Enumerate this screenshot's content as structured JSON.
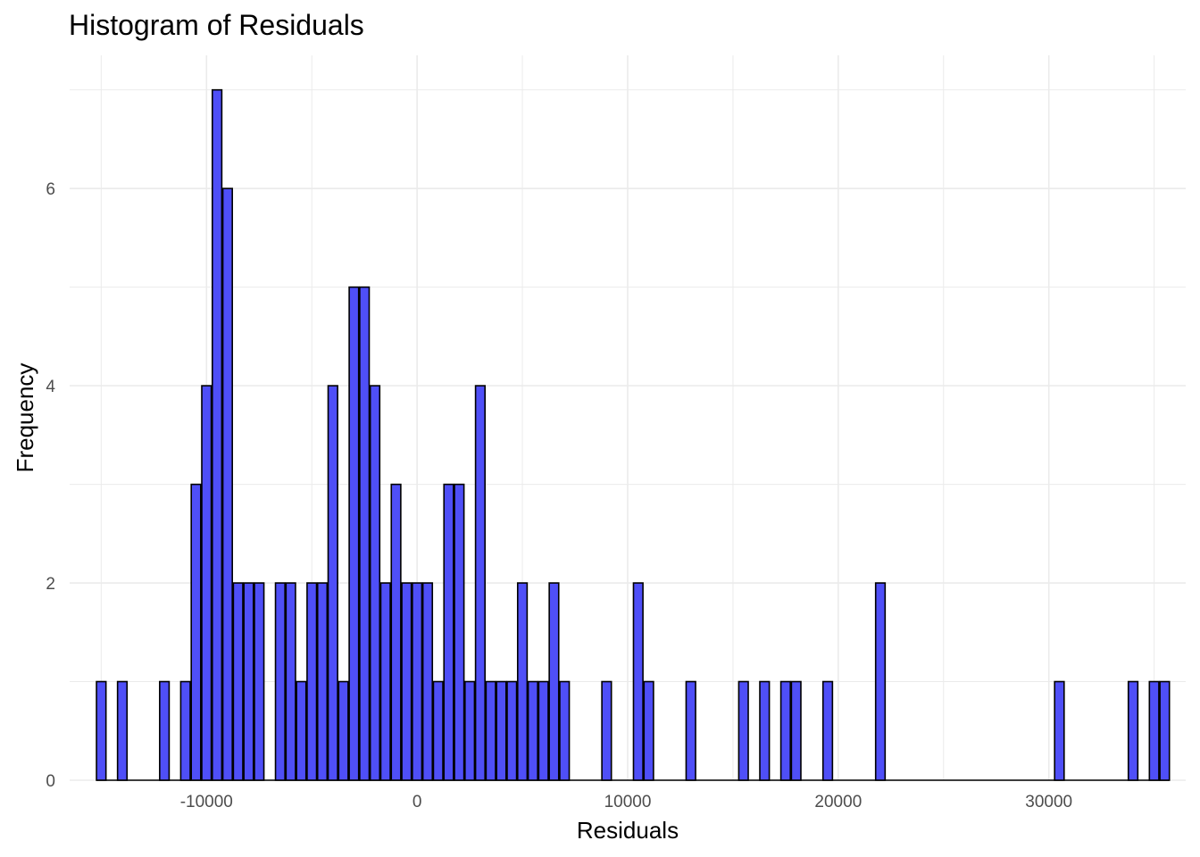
{
  "chart_data": {
    "type": "bar",
    "subtype": "histogram",
    "title": "Histogram of Residuals",
    "xlabel": "Residuals",
    "ylabel": "Frequency",
    "bin_width": 450,
    "xlim": [
      -16500,
      36500
    ],
    "ylim": [
      0,
      7.35
    ],
    "x_ticks": [
      -10000,
      0,
      10000,
      20000,
      30000
    ],
    "x_tick_labels": [
      "-10000",
      "0",
      "10000",
      "20000",
      "30000"
    ],
    "y_ticks": [
      0,
      2,
      4,
      6
    ],
    "y_tick_labels": [
      "0",
      "2",
      "4",
      "6"
    ],
    "grid": true,
    "bins": [
      {
        "x": -15000,
        "count": 1
      },
      {
        "x": -14000,
        "count": 1
      },
      {
        "x": -12000,
        "count": 1
      },
      {
        "x": -11000,
        "count": 1
      },
      {
        "x": -10500,
        "count": 3
      },
      {
        "x": -10000,
        "count": 4
      },
      {
        "x": -9500,
        "count": 7
      },
      {
        "x": -9000,
        "count": 6
      },
      {
        "x": -8500,
        "count": 2
      },
      {
        "x": -8000,
        "count": 2
      },
      {
        "x": -7500,
        "count": 2
      },
      {
        "x": -6500,
        "count": 2
      },
      {
        "x": -6000,
        "count": 2
      },
      {
        "x": -5500,
        "count": 1
      },
      {
        "x": -5000,
        "count": 2
      },
      {
        "x": -4500,
        "count": 2
      },
      {
        "x": -4000,
        "count": 4
      },
      {
        "x": -3500,
        "count": 1
      },
      {
        "x": -3000,
        "count": 5
      },
      {
        "x": -2500,
        "count": 5
      },
      {
        "x": -2000,
        "count": 4
      },
      {
        "x": -1500,
        "count": 2
      },
      {
        "x": -1000,
        "count": 3
      },
      {
        "x": -500,
        "count": 2
      },
      {
        "x": 0,
        "count": 2
      },
      {
        "x": 500,
        "count": 2
      },
      {
        "x": 1000,
        "count": 1
      },
      {
        "x": 1500,
        "count": 3
      },
      {
        "x": 2000,
        "count": 3
      },
      {
        "x": 2500,
        "count": 1
      },
      {
        "x": 3000,
        "count": 4
      },
      {
        "x": 3500,
        "count": 1
      },
      {
        "x": 4000,
        "count": 1
      },
      {
        "x": 4500,
        "count": 1
      },
      {
        "x": 5000,
        "count": 2
      },
      {
        "x": 5500,
        "count": 1
      },
      {
        "x": 6000,
        "count": 1
      },
      {
        "x": 6500,
        "count": 2
      },
      {
        "x": 7000,
        "count": 1
      },
      {
        "x": 9000,
        "count": 1
      },
      {
        "x": 10500,
        "count": 2
      },
      {
        "x": 11000,
        "count": 1
      },
      {
        "x": 13000,
        "count": 1
      },
      {
        "x": 15500,
        "count": 1
      },
      {
        "x": 16500,
        "count": 1
      },
      {
        "x": 17500,
        "count": 1
      },
      {
        "x": 18000,
        "count": 1
      },
      {
        "x": 19500,
        "count": 1
      },
      {
        "x": 22000,
        "count": 2
      },
      {
        "x": 30500,
        "count": 1
      },
      {
        "x": 34000,
        "count": 1
      },
      {
        "x": 35000,
        "count": 1
      },
      {
        "x": 35500,
        "count": 1
      }
    ],
    "baseline_range": [
      -15225,
      35725
    ],
    "colors": {
      "bar_fill": "#4f4ff7",
      "bar_stroke": "#000000",
      "grid": "#ebebeb"
    }
  }
}
